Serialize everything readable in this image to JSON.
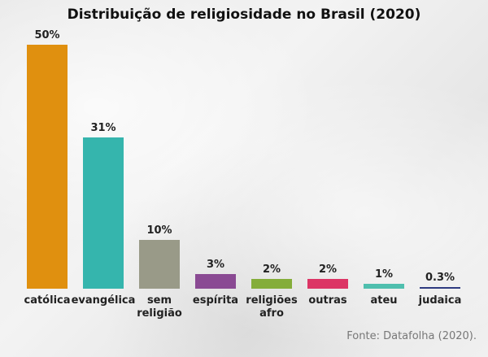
{
  "chart_data": {
    "type": "bar",
    "title": "Distribuição de religiosidade no Brasil (2020)",
    "categories": [
      [
        "católica"
      ],
      [
        "evangélica"
      ],
      [
        "sem",
        "religião"
      ],
      [
        "espírita"
      ],
      [
        "religiões",
        "afro"
      ],
      [
        "outras"
      ],
      [
        "ateu"
      ],
      [
        "judaica"
      ]
    ],
    "values": [
      50,
      31,
      10,
      3,
      2,
      2,
      1,
      0.3
    ],
    "data_labels": [
      "50%",
      "31%",
      "10%",
      "3%",
      "2%",
      "2%",
      "1%",
      "0.3%"
    ],
    "colors": [
      "#e0900f",
      "#35b5ad",
      "#999a88",
      "#8a4a93",
      "#84ad3a",
      "#dc3565",
      "#4fbfae",
      "#2e3b80"
    ],
    "xlabel": "",
    "ylabel": "",
    "ylim": [
      0,
      50
    ],
    "grid": false,
    "legend": "none"
  },
  "source": "Fonte: Datafolha (2020)."
}
